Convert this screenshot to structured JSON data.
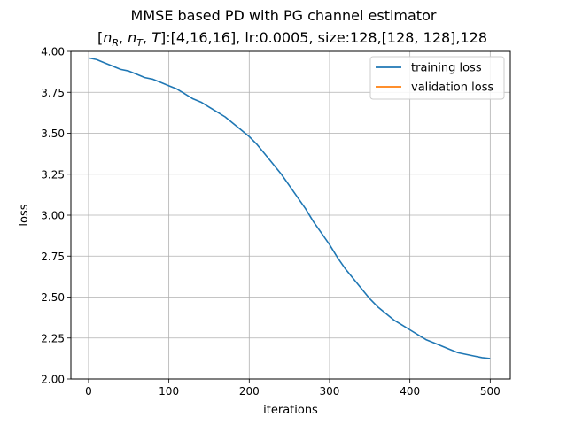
{
  "chart_data": {
    "type": "line",
    "title": "MMSE based PD with PG channel estimator",
    "subtitle": {
      "n": "n",
      "sub_r": "R",
      "sep": ", ",
      "sub_t": "T",
      "t": "T",
      "rest": ":[4,16,16], lr:0.0005, size:128,[128, 128],128"
    },
    "xlabel": "iterations",
    "ylabel": "loss",
    "xlim": [
      -22,
      525
    ],
    "ylim": [
      2.0,
      4.0
    ],
    "xticks": [
      0,
      100,
      200,
      300,
      400,
      500
    ],
    "yticks": [
      2.0,
      2.25,
      2.5,
      2.75,
      3.0,
      3.25,
      3.5,
      3.75,
      4.0
    ],
    "xtick_labels": [
      "0",
      "100",
      "200",
      "300",
      "400",
      "500"
    ],
    "ytick_labels": [
      "2.00",
      "2.25",
      "2.50",
      "2.75",
      "3.00",
      "3.25",
      "3.50",
      "3.75",
      "4.00"
    ],
    "grid": true,
    "legend_position": "top-right",
    "series": [
      {
        "name": "training loss",
        "color": "#1f77b4",
        "x": [
          0,
          10,
          20,
          30,
          40,
          50,
          60,
          70,
          80,
          90,
          100,
          110,
          120,
          130,
          140,
          150,
          160,
          170,
          180,
          190,
          200,
          210,
          220,
          230,
          240,
          250,
          260,
          270,
          280,
          290,
          300,
          310,
          320,
          330,
          340,
          350,
          360,
          370,
          380,
          390,
          400,
          410,
          420,
          430,
          440,
          450,
          460,
          470,
          480,
          490,
          500
        ],
        "values": [
          3.96,
          3.95,
          3.93,
          3.91,
          3.89,
          3.88,
          3.86,
          3.84,
          3.83,
          3.81,
          3.79,
          3.77,
          3.74,
          3.71,
          3.69,
          3.66,
          3.63,
          3.6,
          3.56,
          3.52,
          3.48,
          3.43,
          3.37,
          3.31,
          3.25,
          3.18,
          3.11,
          3.04,
          2.96,
          2.89,
          2.82,
          2.74,
          2.67,
          2.61,
          2.55,
          2.49,
          2.44,
          2.4,
          2.36,
          2.33,
          2.3,
          2.27,
          2.24,
          2.22,
          2.2,
          2.18,
          2.16,
          2.15,
          2.14,
          2.13,
          2.125
        ]
      },
      {
        "name": "validation loss",
        "color": "#ff7f0e",
        "x": [],
        "values": []
      }
    ]
  }
}
